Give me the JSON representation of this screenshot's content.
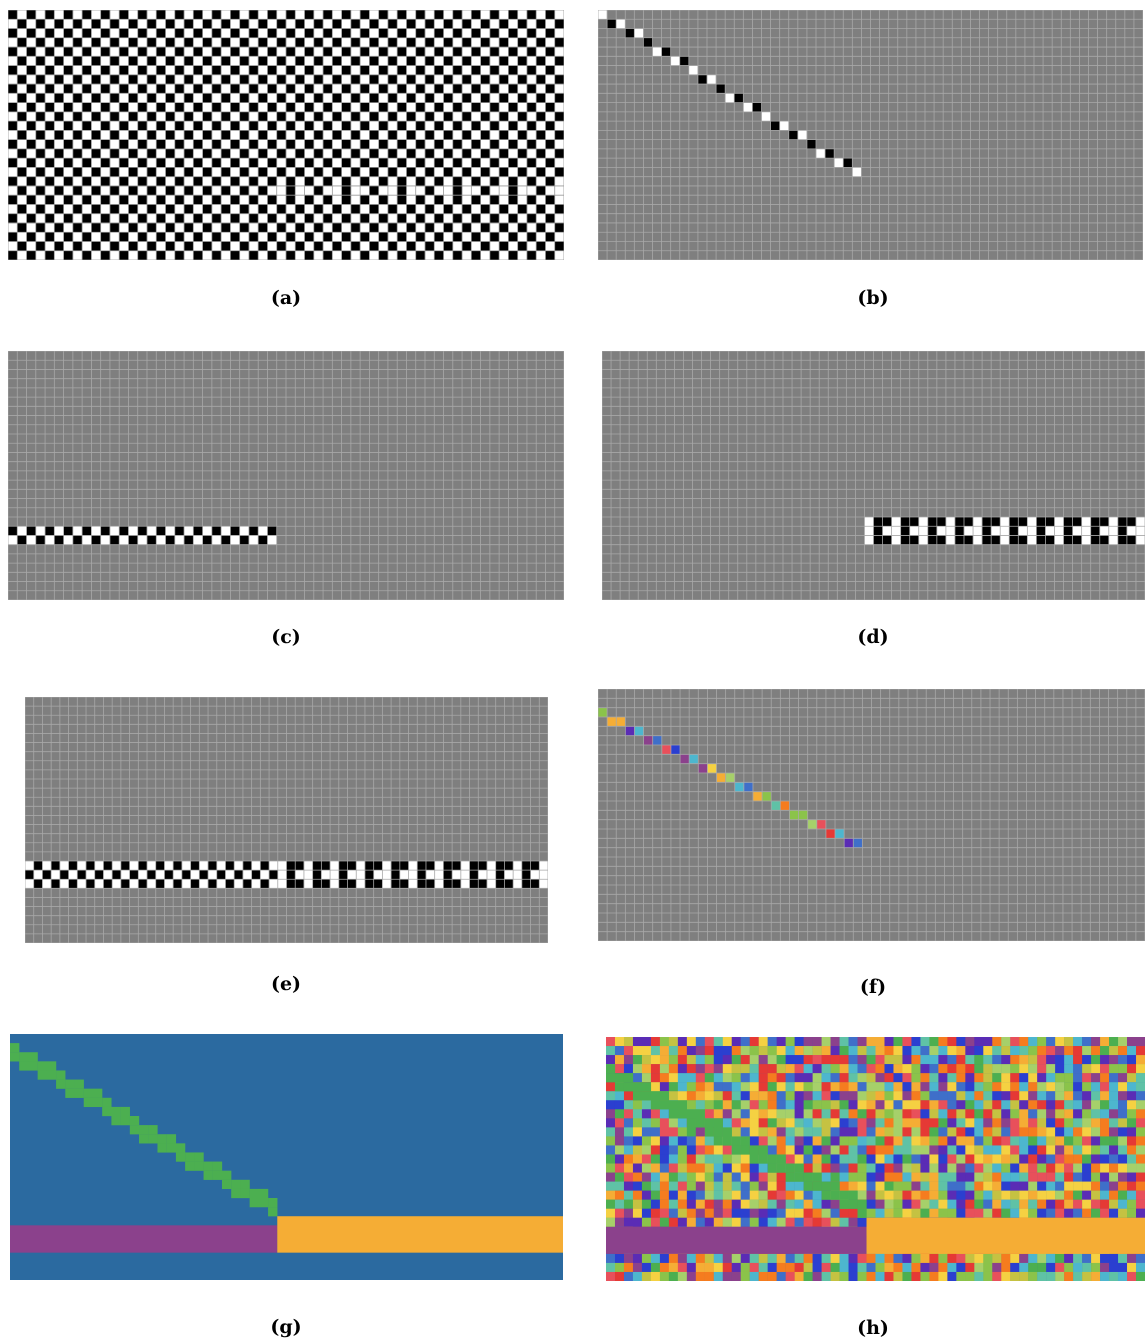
{
  "figure": {
    "grid": {
      "cols": 60,
      "rows": 27
    },
    "colors": {
      "black": "#000000",
      "white": "#ffffff",
      "gray_background": "#7f7f7f",
      "gray_gridline": "#a8a8a8",
      "checker_gridline": "#9a9a9a",
      "blue_background": "#2b6aa0",
      "green_diagonal": "#4caf50",
      "purple_band": "#8b418c",
      "orange_band": "#f5ad35"
    },
    "palette_rainbow": [
      "#e53935",
      "#f57c1f",
      "#f5ad35",
      "#c5c242",
      "#8bc34a",
      "#4caf50",
      "#5fc2a6",
      "#4db6ce",
      "#3f6fc9",
      "#2b3fd0",
      "#5a2cb5",
      "#8b418c",
      "#e8505b",
      "#a6d06a",
      "#f5d142"
    ],
    "panels": [
      {
        "id": "a",
        "caption": "(a)",
        "kind": "checker"
      },
      {
        "id": "b",
        "caption": "(b)",
        "kind": "diagonal-bw"
      },
      {
        "id": "c",
        "caption": "(c)",
        "kind": "band-left-bw"
      },
      {
        "id": "d",
        "caption": "(d)",
        "kind": "band-right-bw"
      },
      {
        "id": "e",
        "caption": "(e)",
        "kind": "band-full-bw"
      },
      {
        "id": "f",
        "caption": "(f)",
        "kind": "diagonal-color"
      },
      {
        "id": "g",
        "caption": "(g)",
        "kind": "segmented"
      },
      {
        "id": "h",
        "caption": "(h)",
        "kind": "noise-segmented"
      }
    ]
  }
}
